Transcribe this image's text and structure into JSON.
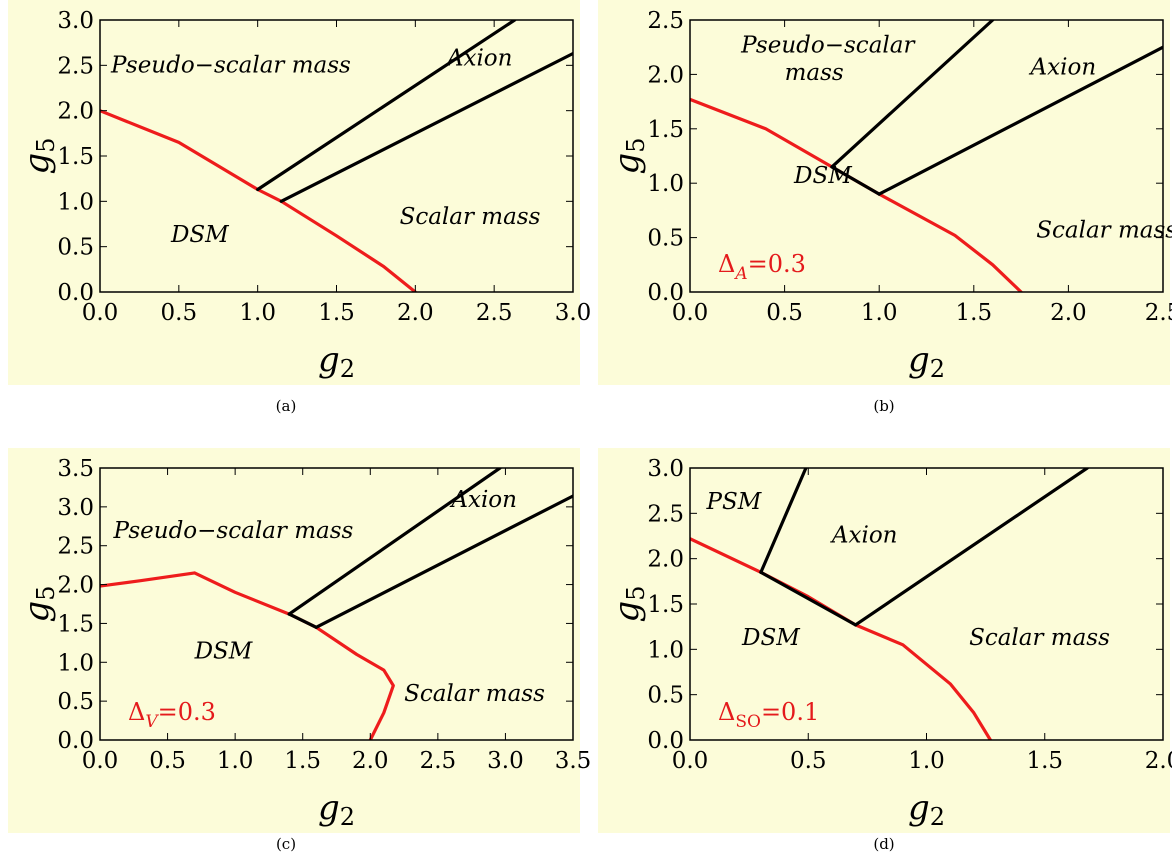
{
  "chart_data": [
    {
      "type": "line",
      "xlabel": "g2",
      "ylabel": "g5",
      "caption": "(a)",
      "xlim": [
        0,
        3.0
      ],
      "ylim": [
        0,
        3.0
      ],
      "xticks": [
        "0.0",
        "0.5",
        "1.0",
        "1.5",
        "2.0",
        "2.5",
        "3.0"
      ],
      "yticks": [
        "0.0",
        "0.5",
        "1.0",
        "1.5",
        "2.0",
        "2.5",
        "3.0"
      ],
      "delta_label": "",
      "series": [
        {
          "color": "#ee1c1c",
          "x": [
            0.0,
            0.5,
            1.0,
            1.15,
            1.5,
            1.8,
            2.0
          ],
          "y": [
            2.0,
            1.65,
            1.13,
            1.0,
            0.62,
            0.28,
            0.0
          ]
        },
        {
          "color": "#000000",
          "x": [
            1.0,
            2.63
          ],
          "y": [
            1.13,
            3.0
          ]
        },
        {
          "color": "#000000",
          "x": [
            1.15,
            3.0
          ],
          "y": [
            1.0,
            2.63
          ]
        }
      ],
      "regions": [
        {
          "text": "Pseudo−scalar mass",
          "x": 0.07,
          "y": 2.42
        },
        {
          "text": "Axion",
          "x": 2.2,
          "y": 2.5
        },
        {
          "text": "Scalar mass",
          "x": 1.9,
          "y": 0.75
        },
        {
          "text": "DSM",
          "x": 0.45,
          "y": 0.55
        }
      ]
    },
    {
      "type": "line",
      "xlabel": "g2",
      "ylabel": "g5",
      "caption": "(b)",
      "xlim": [
        0,
        2.5
      ],
      "ylim": [
        0,
        2.5
      ],
      "xticks": [
        "0.0",
        "0.5",
        "1.0",
        "1.5",
        "2.0",
        "2.5"
      ],
      "yticks": [
        "0.0",
        "0.5",
        "1.0",
        "1.5",
        "2.0",
        "2.5"
      ],
      "delta_label": "Δ",
      "delta_sub": "A",
      "delta_value": "=0.3",
      "series": [
        {
          "color": "#ee1c1c",
          "x": [
            0.0,
            0.4,
            0.75,
            1.0,
            1.4,
            1.6,
            1.75
          ],
          "y": [
            1.77,
            1.5,
            1.15,
            0.9,
            0.52,
            0.25,
            0.0
          ]
        },
        {
          "color": "#000000",
          "x": [
            0.75,
            1.0
          ],
          "y": [
            1.15,
            0.9
          ]
        },
        {
          "color": "#000000",
          "x": [
            0.75,
            1.6
          ],
          "y": [
            1.15,
            2.5
          ]
        },
        {
          "color": "#000000",
          "x": [
            1.0,
            2.5
          ],
          "y": [
            0.9,
            2.25
          ]
        }
      ],
      "regions": [
        {
          "text": "Pseudo−scalar",
          "x": 0.27,
          "y": 2.2
        },
        {
          "text": "mass",
          "x": 0.5,
          "y": 1.95
        },
        {
          "text": "Axion",
          "x": 1.8,
          "y": 2.0
        },
        {
          "text": "DSM",
          "x": 0.55,
          "y": 1.0
        },
        {
          "text": "Scalar mass",
          "x": 1.83,
          "y": 0.5
        }
      ]
    },
    {
      "type": "line",
      "xlabel": "g2",
      "ylabel": "g5",
      "caption": "(c)",
      "xlim": [
        0,
        3.5
      ],
      "ylim": [
        0,
        3.5
      ],
      "xticks": [
        "0.0",
        "0.5",
        "1.0",
        "1.5",
        "2.0",
        "2.5",
        "3.0",
        "3.5"
      ],
      "yticks": [
        "0.0",
        "0.5",
        "1.0",
        "1.5",
        "2.0",
        "2.5",
        "3.0",
        "3.5"
      ],
      "delta_label": "Δ",
      "delta_sub": "V",
      "delta_value": "=0.3",
      "series": [
        {
          "color": "#ee1c1c",
          "x": [
            0.0,
            0.3,
            0.7,
            1.0,
            1.4,
            1.6,
            1.9,
            2.1,
            2.17,
            2.1,
            2.0
          ],
          "y": [
            1.98,
            2.05,
            2.15,
            1.9,
            1.62,
            1.45,
            1.1,
            0.9,
            0.7,
            0.35,
            0.0
          ]
        },
        {
          "color": "#000000",
          "x": [
            1.4,
            1.6
          ],
          "y": [
            1.62,
            1.45
          ]
        },
        {
          "color": "#000000",
          "x": [
            1.4,
            2.96
          ],
          "y": [
            1.62,
            3.5
          ]
        },
        {
          "color": "#000000",
          "x": [
            1.6,
            3.5
          ],
          "y": [
            1.45,
            3.14
          ]
        }
      ],
      "regions": [
        {
          "text": "Pseudo−scalar mass",
          "x": 0.1,
          "y": 2.6
        },
        {
          "text": "Axion",
          "x": 2.6,
          "y": 3.0
        },
        {
          "text": "DSM",
          "x": 0.7,
          "y": 1.05
        },
        {
          "text": "Scalar mass",
          "x": 2.25,
          "y": 0.5
        }
      ]
    },
    {
      "type": "line",
      "xlabel": "g2",
      "ylabel": "g5",
      "caption": "(d)",
      "xlim": [
        0,
        2.0
      ],
      "ylim": [
        0,
        3.0
      ],
      "xticks": [
        "0.0",
        "0.5",
        "1.0",
        "1.5",
        "2.0"
      ],
      "yticks": [
        "0.0",
        "0.5",
        "1.0",
        "1.5",
        "2.0",
        "2.5",
        "3.0"
      ],
      "delta_label": "Δ",
      "delta_sub": "SO",
      "delta_value": "=0.1",
      "series": [
        {
          "color": "#ee1c1c",
          "x": [
            0.0,
            0.3,
            0.5,
            0.7,
            0.9,
            1.1,
            1.2,
            1.27
          ],
          "y": [
            2.22,
            1.85,
            1.58,
            1.27,
            1.05,
            0.62,
            0.3,
            0.0
          ]
        },
        {
          "color": "#000000",
          "x": [
            0.3,
            0.7
          ],
          "y": [
            1.85,
            1.27
          ]
        },
        {
          "color": "#000000",
          "x": [
            0.3,
            0.49
          ],
          "y": [
            1.85,
            3.0
          ]
        },
        {
          "color": "#000000",
          "x": [
            0.7,
            1.68
          ],
          "y": [
            1.27,
            3.0
          ]
        }
      ],
      "regions": [
        {
          "text": "PSM",
          "x": 0.07,
          "y": 2.55
        },
        {
          "text": "Axion",
          "x": 0.6,
          "y": 2.18
        },
        {
          "text": "DSM",
          "x": 0.22,
          "y": 1.05
        },
        {
          "text": "Scalar mass",
          "x": 1.18,
          "y": 1.05
        }
      ]
    }
  ]
}
